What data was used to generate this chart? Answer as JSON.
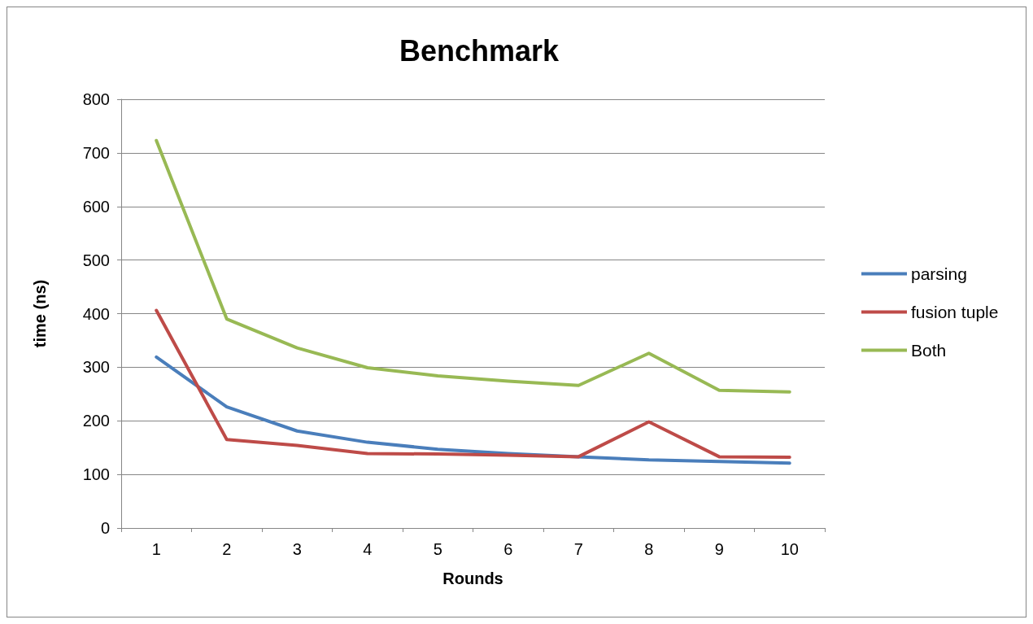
{
  "chart_data": {
    "type": "line",
    "title": "Benchmark",
    "xlabel": "Rounds",
    "ylabel": "time (ns)",
    "categories": [
      "1",
      "2",
      "3",
      "4",
      "5",
      "6",
      "7",
      "8",
      "9",
      "10"
    ],
    "series": [
      {
        "name": "parsing",
        "color": "#4a7ebb",
        "values": [
          319,
          226,
          181,
          160,
          147,
          139,
          133,
          127,
          124,
          121
        ]
      },
      {
        "name": "fusion tuple",
        "color": "#be4b48",
        "values": [
          406,
          165,
          154,
          139,
          138,
          136,
          133,
          198,
          133,
          132
        ]
      },
      {
        "name": "Both",
        "color": "#98b954",
        "values": [
          723,
          390,
          336,
          299,
          284,
          274,
          266,
          326,
          257,
          254
        ]
      }
    ],
    "ylim": [
      0,
      800
    ],
    "yticks": [
      0,
      100,
      200,
      300,
      400,
      500,
      600,
      700,
      800
    ],
    "grid": "y",
    "legend": "right",
    "marker": "none",
    "line_style": "solid"
  }
}
